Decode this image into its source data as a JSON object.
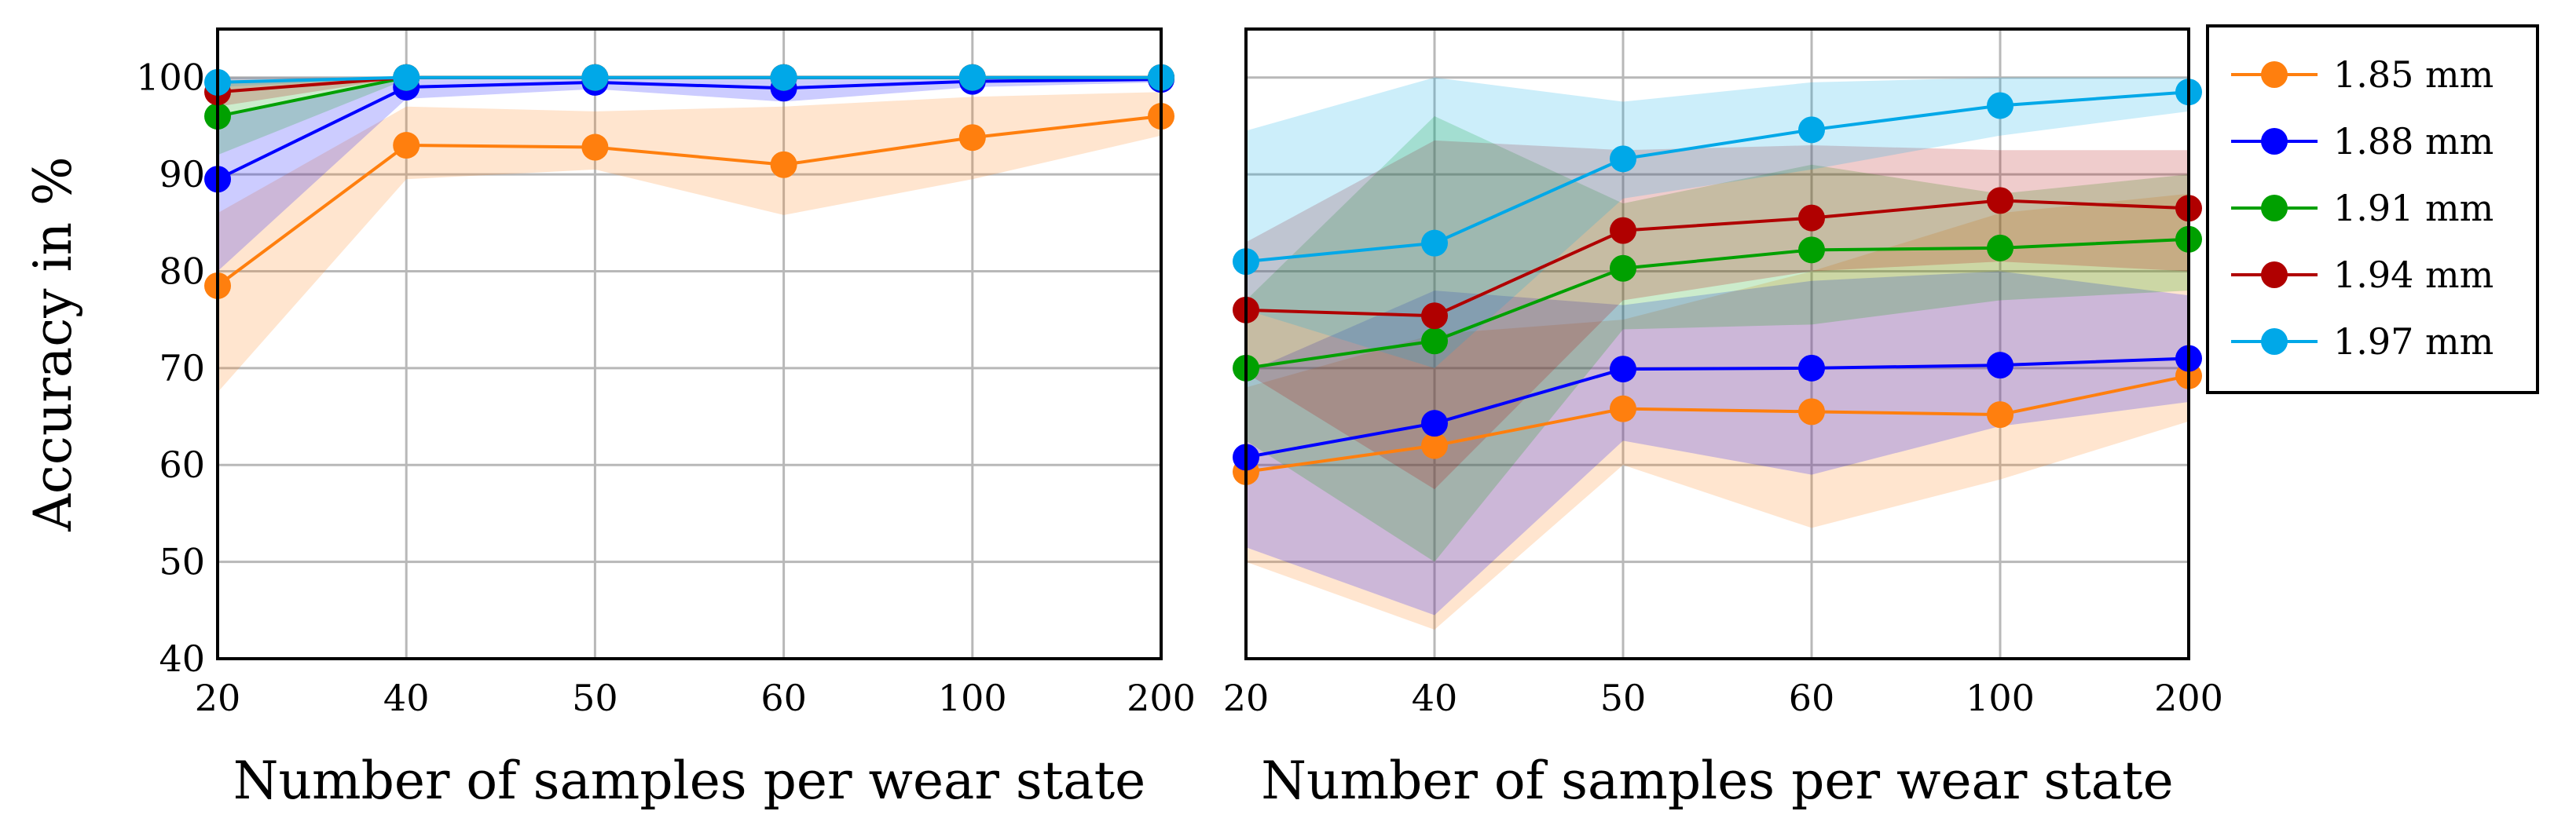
{
  "chart_data": [
    {
      "type": "line",
      "panel": "left",
      "categories": [
        "20",
        "40",
        "50",
        "60",
        "100",
        "200"
      ],
      "xlabel": "Number of samples per wear state",
      "ylabel": "Accuracy in %",
      "ylim": [
        40,
        105
      ],
      "yticks": [
        "40",
        "50",
        "60",
        "70",
        "80",
        "90",
        "100"
      ],
      "grid": true,
      "shaded_band": "min-max range per series",
      "series": [
        {
          "name": "1.85 mm",
          "color": "#ff7f0e",
          "values": [
            78.5,
            93.0,
            92.8,
            91.0,
            93.8,
            96.0
          ],
          "lower": [
            67.5,
            89.5,
            90.5,
            85.8,
            89.5,
            94.0
          ],
          "upper": [
            86.0,
            97.0,
            96.5,
            97.0,
            98.0,
            98.5
          ]
        },
        {
          "name": "1.88 mm",
          "color": "#0000ff",
          "values": [
            89.5,
            99.0,
            99.5,
            98.9,
            99.6,
            99.8
          ],
          "lower": [
            80.0,
            97.8,
            98.8,
            97.5,
            99.0,
            99.5
          ],
          "upper": [
            96.0,
            100.0,
            100.0,
            100.0,
            100.0,
            100.0
          ]
        },
        {
          "name": "1.91 mm",
          "color": "#00a000",
          "values": [
            96.0,
            100.0,
            100.0,
            100.0,
            100.0,
            100.0
          ],
          "lower": [
            92.0,
            99.8,
            100.0,
            100.0,
            100.0,
            100.0
          ],
          "upper": [
            99.5,
            100.0,
            100.0,
            100.0,
            100.0,
            100.0
          ]
        },
        {
          "name": "1.94 mm",
          "color": "#b00000",
          "values": [
            98.5,
            100.0,
            100.0,
            100.0,
            100.0,
            100.0
          ],
          "lower": [
            97.0,
            100.0,
            100.0,
            100.0,
            100.0,
            100.0
          ],
          "upper": [
            100.0,
            100.0,
            100.0,
            100.0,
            100.0,
            100.0
          ]
        },
        {
          "name": "1.97 mm",
          "color": "#00a8e8",
          "values": [
            99.5,
            100.0,
            100.0,
            100.0,
            100.0,
            100.0
          ],
          "lower": [
            99.0,
            100.0,
            100.0,
            100.0,
            100.0,
            100.0
          ],
          "upper": [
            100.0,
            100.0,
            100.0,
            100.0,
            100.0,
            100.0
          ]
        }
      ]
    },
    {
      "type": "line",
      "panel": "right",
      "categories": [
        "20",
        "40",
        "50",
        "60",
        "100",
        "200"
      ],
      "xlabel": "Number of samples per wear state",
      "ylabel": "",
      "ylim": [
        40,
        105
      ],
      "grid": true,
      "shaded_band": "min-max range per series",
      "series": [
        {
          "name": "1.85 mm",
          "color": "#ff7f0e",
          "values": [
            59.3,
            62.0,
            65.8,
            65.5,
            65.2,
            69.2
          ],
          "lower": [
            50.0,
            43.0,
            60.0,
            53.5,
            58.5,
            64.5
          ],
          "upper": [
            68.0,
            73.5,
            75.0,
            80.0,
            86.0,
            88.0
          ]
        },
        {
          "name": "1.88 mm",
          "color": "#0000ff",
          "values": [
            60.8,
            64.3,
            69.9,
            70.0,
            70.3,
            71.0
          ],
          "lower": [
            51.5,
            44.5,
            62.5,
            59.0,
            64.0,
            66.5
          ],
          "upper": [
            69.5,
            78.0,
            76.5,
            79.0,
            80.0,
            77.5
          ]
        },
        {
          "name": "1.91 mm",
          "color": "#00a000",
          "values": [
            70.0,
            72.8,
            80.3,
            82.2,
            82.4,
            83.3
          ],
          "lower": [
            62.5,
            50.0,
            74.0,
            74.5,
            77.0,
            78.0
          ],
          "upper": [
            77.0,
            96.0,
            87.0,
            91.0,
            88.0,
            90.0
          ]
        },
        {
          "name": "1.94 mm",
          "color": "#b00000",
          "values": [
            76.0,
            75.4,
            84.2,
            85.5,
            87.3,
            86.5
          ],
          "lower": [
            69.5,
            57.5,
            77.0,
            80.0,
            81.0,
            80.0
          ],
          "upper": [
            83.0,
            93.5,
            92.5,
            93.0,
            92.5,
            92.5
          ]
        },
        {
          "name": "1.97 mm",
          "color": "#00a8e8",
          "values": [
            81.0,
            82.9,
            91.6,
            94.6,
            97.1,
            98.5
          ],
          "lower": [
            76.0,
            70.0,
            87.5,
            90.5,
            94.0,
            96.5
          ],
          "upper": [
            94.5,
            100.0,
            97.5,
            99.5,
            100.0,
            100.0
          ]
        }
      ]
    }
  ],
  "legend": {
    "placement": "right",
    "entries": [
      "1.85 mm",
      "1.88 mm",
      "1.91 mm",
      "1.94 mm",
      "1.97 mm"
    ]
  }
}
